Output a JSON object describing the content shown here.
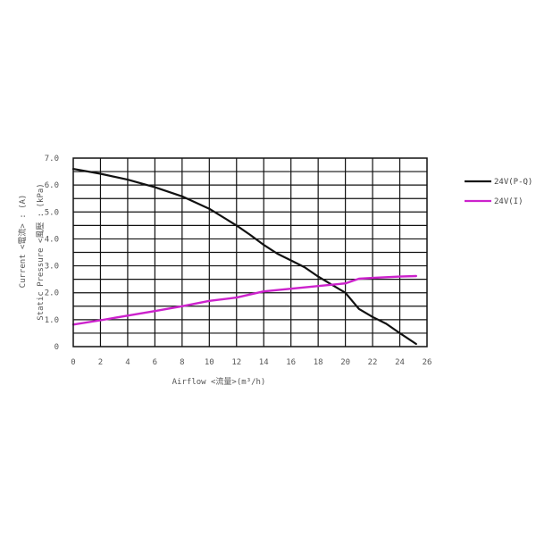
{
  "chart_data": {
    "type": "line",
    "xlabel": "Airflow <流量>(m³/h)",
    "ylabel_lines": [
      "Static  Pressure  <風壓 : (kPa)",
      "Current  <電流> : (A)"
    ],
    "xlim": [
      0,
      26
    ],
    "ylim": [
      0,
      7
    ],
    "x_ticks": [
      "0",
      "2",
      "4",
      "6",
      "8",
      "10",
      "12",
      "14",
      "16",
      "18",
      "20",
      "22",
      "24",
      "26"
    ],
    "y_ticks": [
      "0",
      "1.0",
      "2.0",
      "3.0",
      "4.0",
      "5.0",
      "6.0",
      "7.0"
    ],
    "grid": true,
    "legend_position": "right",
    "series": [
      {
        "name": "24V(P-Q)",
        "color": "#111111",
        "x": [
          0,
          2,
          4,
          6,
          8,
          10,
          12,
          13,
          14,
          15,
          16,
          17,
          18,
          19,
          20,
          21,
          22,
          23,
          24,
          25.2
        ],
        "y": [
          6.6,
          6.42,
          6.2,
          5.92,
          5.58,
          5.12,
          4.5,
          4.15,
          3.78,
          3.45,
          3.2,
          2.95,
          2.6,
          2.3,
          2.0,
          1.4,
          1.1,
          0.85,
          0.5,
          0.1
        ]
      },
      {
        "name": "24V(I)",
        "color": "#cc22cc",
        "x": [
          0,
          2,
          4,
          6,
          8,
          10,
          12,
          14,
          16,
          18,
          20,
          21,
          22,
          24,
          25.2
        ],
        "y": [
          0.82,
          0.98,
          1.15,
          1.32,
          1.5,
          1.7,
          1.82,
          2.05,
          2.15,
          2.25,
          2.35,
          2.52,
          2.55,
          2.6,
          2.62
        ]
      }
    ]
  }
}
